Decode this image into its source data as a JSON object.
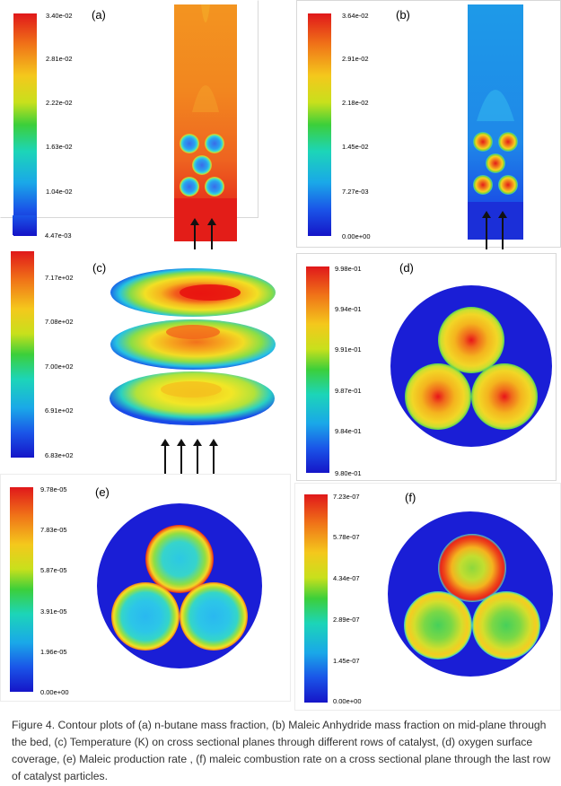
{
  "panels": {
    "a": {
      "label": "(a)",
      "ticks": [
        "3.40e-02",
        "2.81e-02",
        "2.22e-02",
        "1.63e-02",
        "1.04e-02",
        "4.47e-03"
      ]
    },
    "b": {
      "label": "(b)",
      "ticks": [
        "3.64e-02",
        "2.91e-02",
        "2.18e-02",
        "1.45e-02",
        "7.27e-03",
        "0.00e+00"
      ]
    },
    "c": {
      "label": "(c)",
      "ticks": [
        "7.17e+02",
        "7.08e+02",
        "7.00e+02",
        "6.91e+02",
        "6.83e+02"
      ]
    },
    "d": {
      "label": "(d)",
      "ticks": [
        "9.98e-01",
        "9.94e-01",
        "9.91e-01",
        "9.87e-01",
        "9.84e-01",
        "9.80e-01"
      ]
    },
    "e": {
      "label": "(e)",
      "ticks": [
        "9.78e-05",
        "7.83e-05",
        "5.87e-05",
        "3.91e-05",
        "1.96e-05",
        "0.00e+00"
      ]
    },
    "f": {
      "label": "(f)",
      "ticks": [
        "7.23e-07",
        "5.78e-07",
        "4.34e-07",
        "2.89e-07",
        "1.45e-07",
        "0.00e+00"
      ]
    }
  },
  "caption": "Figure 4. Contour plots of (a) n-butane mass fraction, (b) Maleic Anhydride mass fraction on mid-plane through the bed, (c) Temperature (K) on  cross sectional planes through different rows of catalyst, (d) oxygen surface coverage, (e) Maleic production rate , (f) maleic combustion rate on a cross sectional plane through the last row of catalyst particles."
}
